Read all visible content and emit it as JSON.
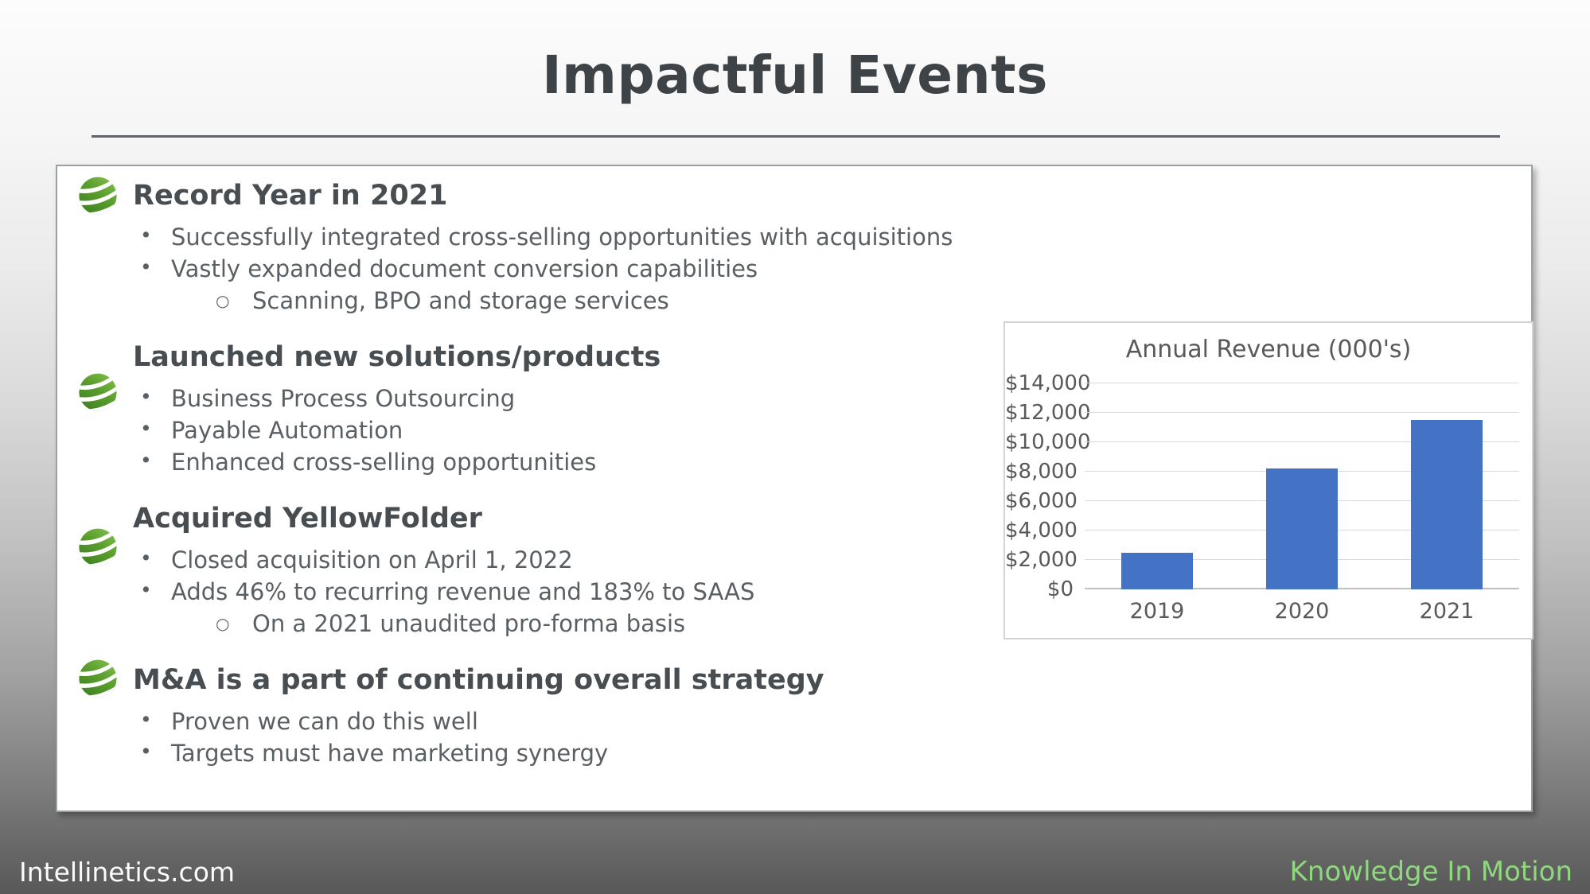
{
  "slide": {
    "title": "Impactful Events",
    "footer_left": "Intellinetics.com",
    "footer_right": "Knowledge In Motion",
    "footer_right_color": "#90d87f",
    "logo_green_dark": "#2e6e1a",
    "logo_green_light": "#8dc63f"
  },
  "sections": [
    {
      "heading": "Record Year in 2021",
      "icon": "intellinetics-globe",
      "bullets": [
        {
          "level": 1,
          "text": "Successfully integrated cross-selling opportunities with acquisitions"
        },
        {
          "level": 1,
          "text": "Vastly expanded document conversion capabilities"
        },
        {
          "level": 2,
          "text": "Scanning, BPO and storage services"
        }
      ]
    },
    {
      "heading": "Launched new solutions/products",
      "icon": "intellinetics-globe",
      "bullets": [
        {
          "level": 1,
          "text": "Business Process Outsourcing"
        },
        {
          "level": 1,
          "text": "Payable Automation"
        },
        {
          "level": 1,
          "text": "Enhanced cross-selling opportunities"
        }
      ]
    },
    {
      "heading": "Acquired YellowFolder",
      "icon": "intellinetics-globe",
      "bullets": [
        {
          "level": 1,
          "text": "Closed acquisition on April 1, 2022"
        },
        {
          "level": 1,
          "text": "Adds 46% to recurring revenue and 183% to SAAS"
        },
        {
          "level": 2,
          "text": "On a 2021 unaudited pro-forma basis"
        }
      ]
    },
    {
      "heading": "M&A is a part of continuing overall strategy",
      "icon": "intellinetics-globe",
      "bullets": [
        {
          "level": 1,
          "text": "Proven we can do this well"
        },
        {
          "level": 1,
          "text": "Targets must have marketing synergy"
        }
      ]
    }
  ],
  "chart_data": {
    "type": "bar",
    "title": "Annual Revenue (000's)",
    "categories": [
      "2019",
      "2020",
      "2021"
    ],
    "values": [
      2500,
      8200,
      11500
    ],
    "ylim": [
      0,
      14000
    ],
    "ytick_step": 2000,
    "yticks": [
      "$0",
      "$2,000",
      "$4,000",
      "$6,000",
      "$8,000",
      "$10,000",
      "$12,000",
      "$14,000"
    ],
    "bar_color": "#4472c4",
    "gridline_color": "#d9d9d9",
    "grid": true,
    "legend": false
  }
}
